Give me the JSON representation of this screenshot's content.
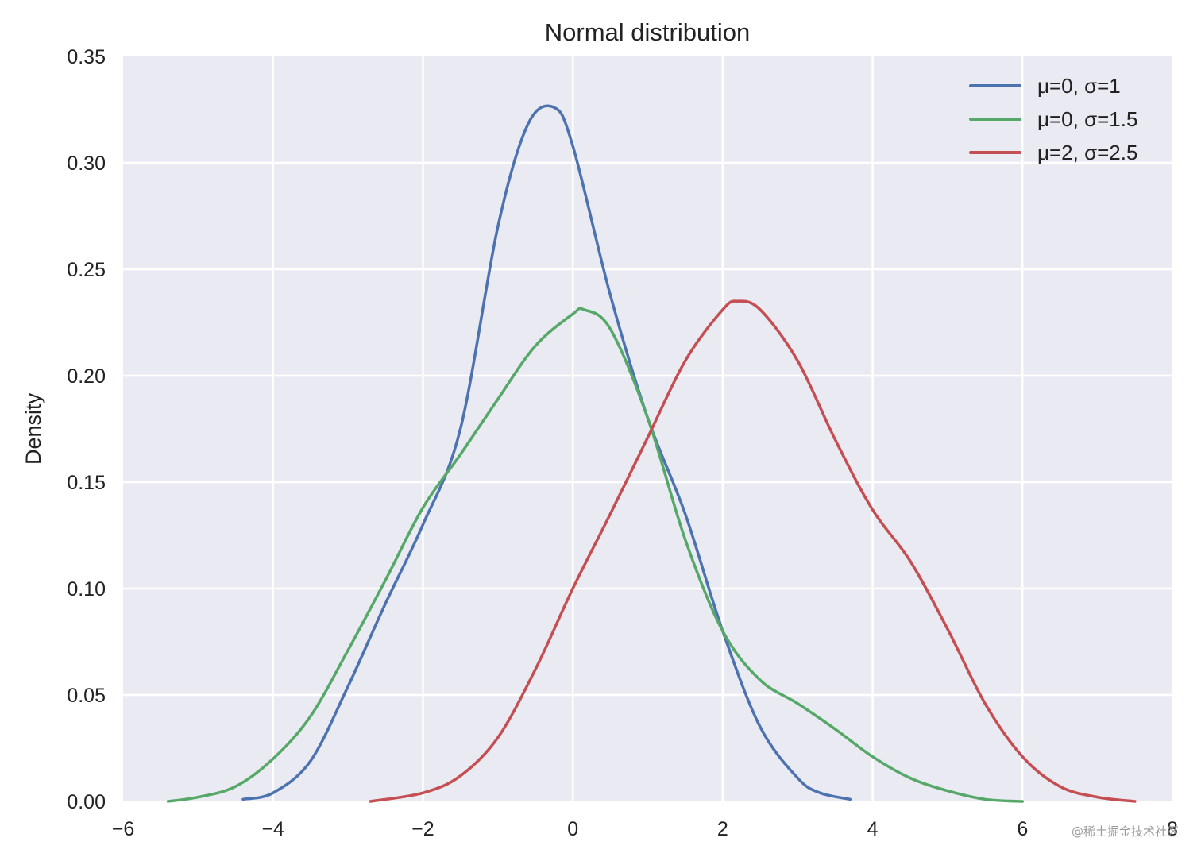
{
  "chart_data": {
    "type": "line",
    "title": "Normal distribution",
    "xlabel": "",
    "ylabel": "Density",
    "xlim": [
      -6,
      8
    ],
    "ylim": [
      0,
      0.35
    ],
    "xticks": [
      -6,
      -4,
      -2,
      0,
      2,
      4,
      6,
      8
    ],
    "xtick_labels": [
      "−6",
      "−4",
      "−2",
      "0",
      "2",
      "4",
      "6",
      "8"
    ],
    "yticks": [
      0,
      0.05,
      0.1,
      0.15,
      0.2,
      0.25,
      0.3,
      0.35
    ],
    "ytick_labels": [
      "0.00",
      "0.05",
      "0.10",
      "0.15",
      "0.20",
      "0.25",
      "0.30",
      "0.35"
    ],
    "grid": true,
    "legend_position": "top-right",
    "series": [
      {
        "name": "μ=0, σ=1",
        "color": "#4c72b0",
        "x": [
          -4.4,
          -4.0,
          -3.5,
          -3.0,
          -2.5,
          -2.0,
          -1.5,
          -1.0,
          -0.6,
          -0.25,
          0.0,
          0.5,
          1.0,
          1.5,
          2.0,
          2.5,
          3.0,
          3.3,
          3.7
        ],
        "y": [
          0.001,
          0.004,
          0.019,
          0.054,
          0.093,
          0.13,
          0.175,
          0.27,
          0.318,
          0.326,
          0.308,
          0.238,
          0.18,
          0.135,
          0.08,
          0.035,
          0.011,
          0.004,
          0.001
        ]
      },
      {
        "name": "μ=0, σ=1.5",
        "color": "#55a868",
        "x": [
          -5.4,
          -5.0,
          -4.5,
          -4.0,
          -3.5,
          -3.0,
          -2.5,
          -2.0,
          -1.5,
          -1.0,
          -0.5,
          0.0,
          0.15,
          0.5,
          1.0,
          1.5,
          2.0,
          2.5,
          3.0,
          3.5,
          4.0,
          4.5,
          5.0,
          5.5,
          6.0
        ],
        "y": [
          0.0,
          0.002,
          0.007,
          0.02,
          0.04,
          0.071,
          0.104,
          0.138,
          0.163,
          0.189,
          0.214,
          0.229,
          0.231,
          0.222,
          0.18,
          0.123,
          0.08,
          0.057,
          0.046,
          0.034,
          0.021,
          0.011,
          0.005,
          0.001,
          0.0
        ]
      },
      {
        "name": "μ=2, σ=2.5",
        "color": "#c44e52",
        "x": [
          -2.7,
          -2.0,
          -1.5,
          -1.0,
          -0.5,
          0.0,
          0.5,
          1.0,
          1.5,
          2.0,
          2.2,
          2.5,
          3.0,
          3.5,
          4.0,
          4.5,
          5.0,
          5.5,
          6.0,
          6.5,
          7.0,
          7.5
        ],
        "y": [
          0.0,
          0.004,
          0.012,
          0.03,
          0.062,
          0.1,
          0.135,
          0.171,
          0.207,
          0.231,
          0.235,
          0.231,
          0.207,
          0.17,
          0.137,
          0.113,
          0.081,
          0.046,
          0.021,
          0.007,
          0.002,
          0.0
        ]
      }
    ]
  },
  "watermark": "@稀土掘金技术社区"
}
